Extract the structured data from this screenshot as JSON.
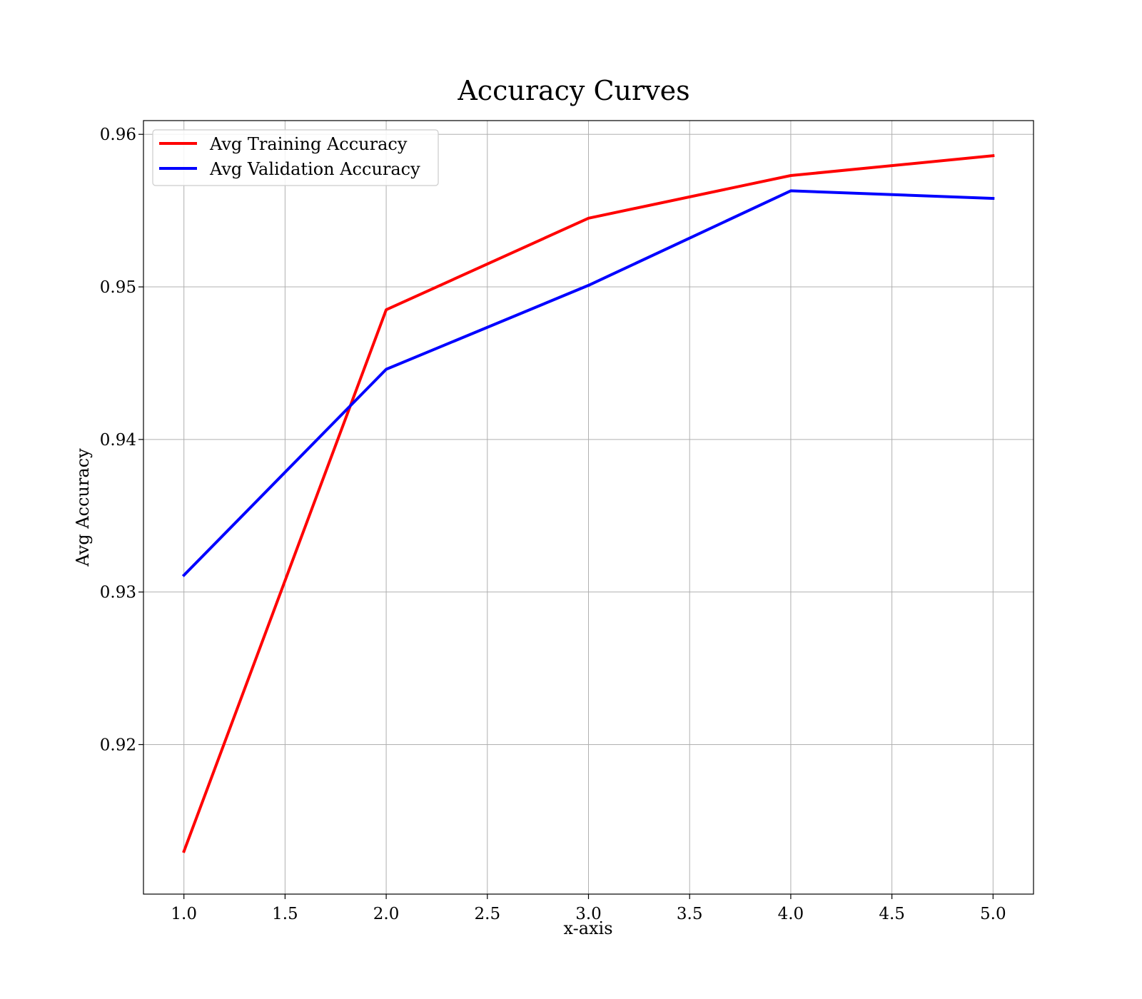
{
  "chart_data": {
    "type": "line",
    "title": "Accuracy Curves",
    "xlabel": "x-axis",
    "ylabel": "Avg Accuracy",
    "x": [
      1.0,
      2.0,
      3.0,
      4.0,
      5.0
    ],
    "xlim": [
      0.8,
      5.2
    ],
    "ylim": [
      0.9102,
      0.9609
    ],
    "xticks": [
      1.0,
      1.5,
      2.0,
      2.5,
      3.0,
      3.5,
      4.0,
      4.5,
      5.0
    ],
    "xtick_labels": [
      "1.0",
      "1.5",
      "2.0",
      "2.5",
      "3.0",
      "3.5",
      "4.0",
      "4.5",
      "5.0"
    ],
    "yticks": [
      0.92,
      0.93,
      0.94,
      0.95,
      0.96
    ],
    "ytick_labels": [
      "0.92",
      "0.93",
      "0.94",
      "0.95",
      "0.96"
    ],
    "grid": true,
    "legend_position": "top-left",
    "series": [
      {
        "name": "Avg Training Accuracy",
        "color": "#ff0000",
        "values": [
          0.913,
          0.9485,
          0.9545,
          0.9573,
          0.9586
        ]
      },
      {
        "name": "Avg Validation Accuracy",
        "color": "#0000ff",
        "values": [
          0.9311,
          0.9446,
          0.9501,
          0.9563,
          0.9558
        ]
      }
    ]
  }
}
